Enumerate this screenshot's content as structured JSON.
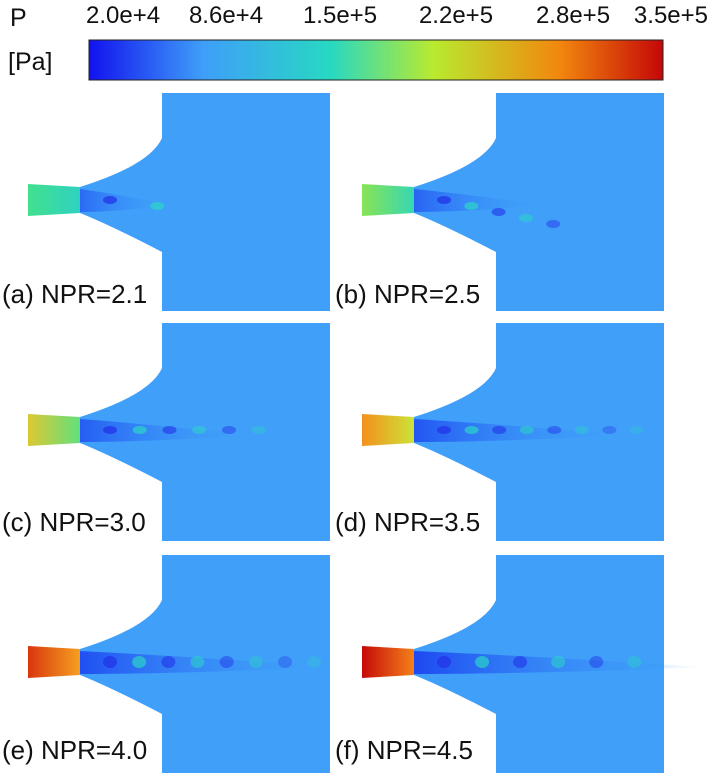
{
  "colorbar": {
    "variable": "P",
    "unit": "[Pa]",
    "ticks": [
      "2.0e+4",
      "8.6e+4",
      "1.5e+5",
      "2.2e+5",
      "2.8e+5",
      "3.5e+5"
    ],
    "colors": [
      "#1212ee",
      "#3f9ff9",
      "#27d8c3",
      "#b8ea2f",
      "#f2870e",
      "#c40707"
    ]
  },
  "field_colors": {
    "ambient": "#3f9ff9"
  },
  "panels": [
    {
      "label": "(a) NPR=2.1",
      "inlet_color_start": "#42e08f",
      "inlet_color_end": "#2ed2c0"
    },
    {
      "label": "(b) NPR=2.5",
      "inlet_color_start": "#88e455",
      "inlet_color_end": "#37d7b3"
    },
    {
      "label": "(c) NPR=3.0",
      "inlet_color_start": "#dcc832",
      "inlet_color_end": "#62e07c"
    },
    {
      "label": "(d) NPR=3.5",
      "inlet_color_start": "#f4901c",
      "inlet_color_end": "#cce338"
    },
    {
      "label": "(e) NPR=4.0",
      "inlet_color_start": "#d9360e",
      "inlet_color_end": "#f5a020"
    },
    {
      "label": "(f) NPR=4.5",
      "inlet_color_start": "#c60a08",
      "inlet_color_end": "#f4811a"
    }
  ]
}
